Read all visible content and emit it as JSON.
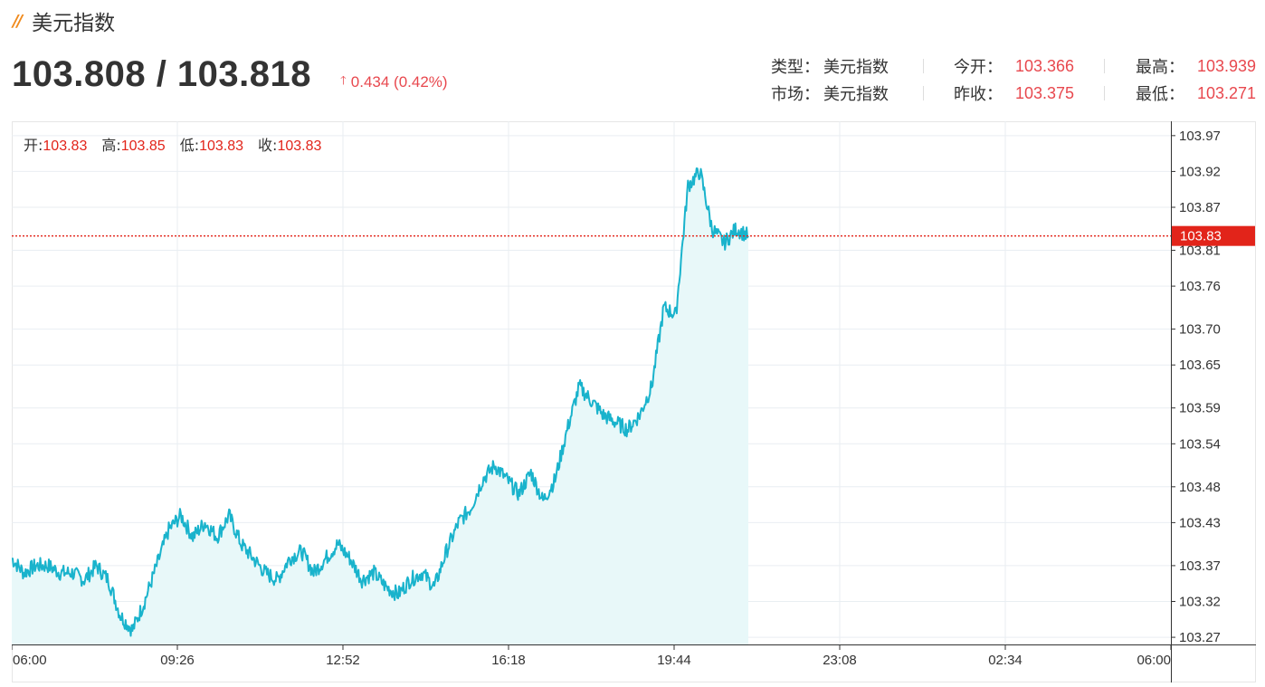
{
  "header": {
    "icon": "double-slash-icon",
    "title": "美元指数"
  },
  "quote": {
    "price": "103.808 / 103.818",
    "change": "0.434 (0.42%)",
    "direction_icon": "up-arrow-icon"
  },
  "info": {
    "type_label": "类型：",
    "type_value": "美元指数",
    "market_label": "市场：",
    "market_value": "美元指数",
    "open_label": "今开：",
    "open_value": "103.366",
    "prev_close_label": "昨收：",
    "prev_close_value": "103.375",
    "high_label": "最高：",
    "high_value": "103.939",
    "low_label": "最低：",
    "low_value": "103.271"
  },
  "ohlc": {
    "open_label": "开:",
    "open_value": "103.83",
    "high_label": "高:",
    "high_value": "103.85",
    "low_label": "低:",
    "low_value": "103.83",
    "close_label": "收:",
    "close_value": "103.83"
  },
  "colors": {
    "line": "#19b3cc",
    "fill": "#e8f8f9",
    "current_marker": "#e2241a",
    "up": "#e8484e"
  },
  "chart_data": {
    "type": "area",
    "x_ticks": [
      "06:00",
      "09:26",
      "12:52",
      "16:18",
      "19:44",
      "23:08",
      "02:34",
      "06:00"
    ],
    "y_ticks": [
      "103.97",
      "103.92",
      "103.87",
      "103.81",
      "103.76",
      "103.70",
      "103.65",
      "103.59",
      "103.54",
      "103.48",
      "103.43",
      "103.37",
      "103.32",
      "103.27"
    ],
    "ylim": [
      103.26,
      103.99
    ],
    "xlim_hours": [
      0,
      24
    ],
    "current_value": "103.83",
    "current_line_value": 103.83,
    "grid": true,
    "series": [
      {
        "x_hours": [
          0,
          0.25,
          0.5,
          0.75,
          1.0,
          1.25,
          1.5,
          1.75,
          2.0,
          2.25,
          2.5,
          2.75,
          3.0,
          3.25,
          3.5,
          3.75,
          4.0,
          4.25,
          4.5,
          4.75,
          5.0,
          5.25,
          5.5,
          5.75,
          6.0,
          6.25,
          6.5,
          6.75,
          7.0,
          7.25,
          7.5,
          7.75,
          8.0,
          8.25,
          8.5,
          8.75,
          9.0,
          9.25,
          9.5,
          9.75,
          10.0,
          10.25,
          10.5,
          10.75,
          11.0,
          11.25,
          11.5,
          11.75,
          12.0,
          12.25,
          12.5,
          12.75,
          13.0,
          13.25,
          13.5,
          13.75,
          14.0,
          14.25,
          14.5,
          14.75,
          15.0,
          15.25
        ],
        "values": [
          103.38,
          103.36,
          103.37,
          103.37,
          103.36,
          103.36,
          103.35,
          103.37,
          103.35,
          103.3,
          103.28,
          103.32,
          103.37,
          103.42,
          103.44,
          103.41,
          103.43,
          103.41,
          103.44,
          103.4,
          103.38,
          103.36,
          103.35,
          103.38,
          103.39,
          103.36,
          103.38,
          103.4,
          103.38,
          103.35,
          103.36,
          103.34,
          103.33,
          103.35,
          103.36,
          103.34,
          103.39,
          103.43,
          103.45,
          103.49,
          103.51,
          103.49,
          103.47,
          103.5,
          103.46,
          103.49,
          103.56,
          103.62,
          103.6,
          103.58,
          103.57,
          103.56,
          103.58,
          103.62,
          103.73,
          103.72,
          103.9,
          103.92,
          103.84,
          103.82,
          103.84,
          103.83
        ]
      }
    ]
  }
}
